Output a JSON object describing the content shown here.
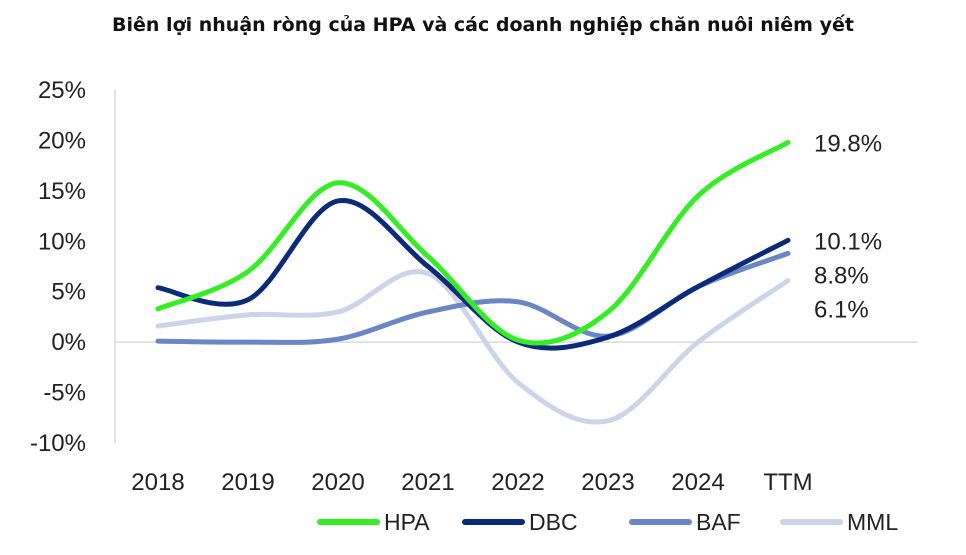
{
  "chart_data": {
    "type": "line",
    "title": "Biên lợi nhuận ròng của HPA và các doanh nghiệp chăn nuôi niêm yết",
    "xlabel": "",
    "ylabel": "",
    "categories": [
      "2018",
      "2019",
      "2020",
      "2021",
      "2022",
      "2023",
      "2024",
      "TTM"
    ],
    "ylim": [
      -10,
      25
    ],
    "yticks": [
      -10,
      -5,
      0,
      5,
      10,
      15,
      20,
      25
    ],
    "ytick_labels": [
      "-10%",
      "-5%",
      "0%",
      "5%",
      "10%",
      "15%",
      "20%",
      "25%"
    ],
    "grid": false,
    "legend_position": "bottom",
    "series": [
      {
        "name": "HPA",
        "color": "#33ee22",
        "values": [
          3.3,
          7.0,
          15.8,
          8.5,
          0.2,
          3.0,
          14.5,
          19.8
        ],
        "end_label": "19.8%"
      },
      {
        "name": "DBC",
        "color": "#0b2a78",
        "values": [
          5.4,
          4.2,
          14.0,
          7.5,
          0.0,
          0.5,
          5.5,
          10.1
        ],
        "end_label": "10.1%"
      },
      {
        "name": "BAF",
        "color": "#6b86c2",
        "values": [
          0.1,
          0.0,
          0.3,
          3.0,
          4.0,
          0.6,
          5.5,
          8.8
        ],
        "end_label": "8.8%"
      },
      {
        "name": "MML",
        "color": "#cdd4e8",
        "values": [
          1.6,
          2.7,
          3.0,
          6.8,
          -4.0,
          -7.8,
          0.0,
          6.1
        ],
        "end_label": "6.1%"
      }
    ]
  }
}
